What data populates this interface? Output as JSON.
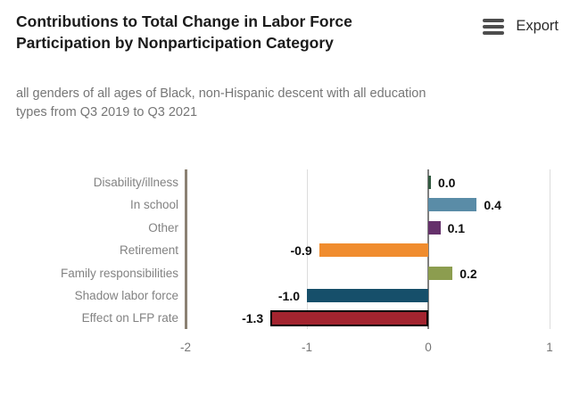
{
  "header": {
    "export_label": "Export"
  },
  "chart_data": {
    "type": "bar",
    "orientation": "horizontal",
    "title": "Contributions to Total Change in Labor Force Participation by Nonparticipation Category",
    "subtitle": "all genders of all ages of Black, non-Hispanic descent with all education types from Q3 2019 to Q3 2021",
    "categories": [
      "Disability/illness",
      "In school",
      "Other",
      "Retirement",
      "Family responsibilities",
      "Shadow labor force",
      "Effect on LFP rate"
    ],
    "values": [
      0.0,
      0.4,
      0.1,
      -0.9,
      0.2,
      -1.0,
      -1.3
    ],
    "value_labels": [
      "0.0",
      "0.4",
      "0.1",
      "-0.9",
      "0.2",
      "-1.0",
      "-1.3"
    ],
    "bar_colors": [
      "#335b41",
      "#5a8ca7",
      "#65316b",
      "#f08c2e",
      "#8c9d4f",
      "#164f6a",
      "#a3242f"
    ],
    "outlined_category": "Effect on LFP rate",
    "xlim": [
      -2,
      1
    ],
    "xticks": [
      "-2",
      "-1",
      "0",
      "1"
    ],
    "xtick_values": [
      -2,
      -1,
      0,
      1
    ],
    "xlabel": "",
    "ylabel": "",
    "legend": "none",
    "grid": "vertical gridlines at x ticks, dark baseline at 0, taupe axis line at -2",
    "style_colors": {
      "title_text": "#1b1b1b",
      "subtitle_text": "#767676",
      "category_text": "#828282",
      "tick_text": "#767676",
      "zero_line": "#7f7f7f",
      "grid_line": "#dcdcdc",
      "axis_line": "#8b8173",
      "value_text": "#0d0d0d",
      "export_icon": "#4d4d4d"
    }
  }
}
